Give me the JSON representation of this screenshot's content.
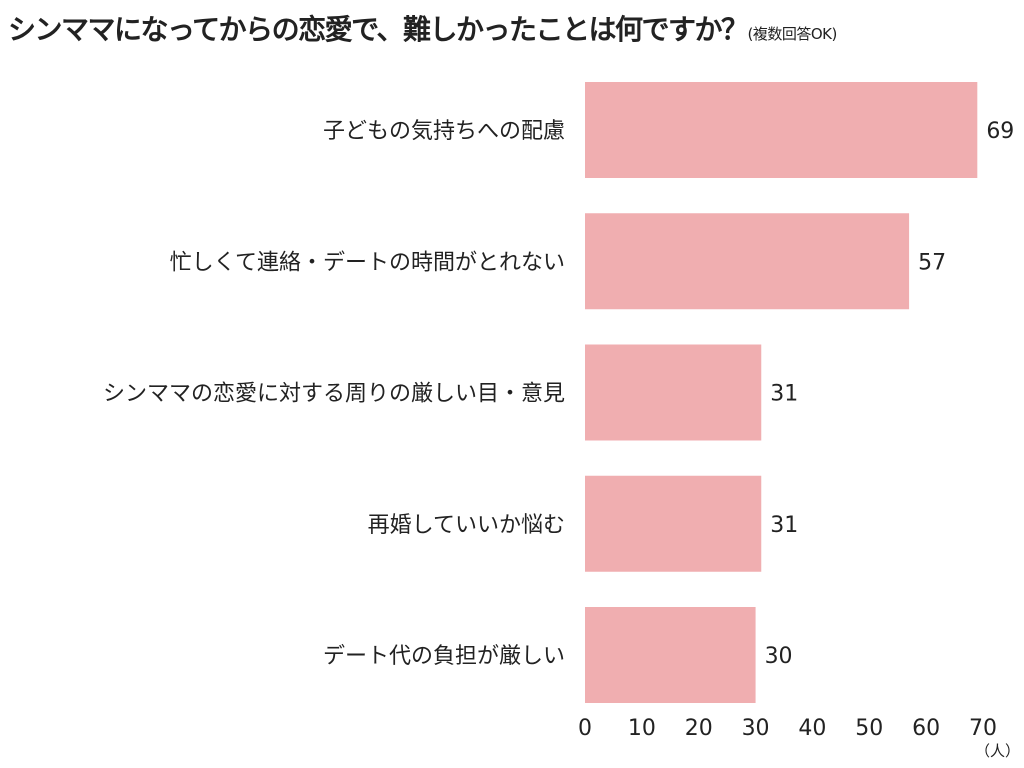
{
  "chart_data": {
    "type": "bar",
    "orientation": "horizontal",
    "title": "シンママになってからの恋愛で、難しかったことは何ですか？",
    "subtitle": "(複数回答OK)",
    "categories": [
      "子どもの気持ちへの配慮",
      "忙しくて連絡・デートの時間がとれない",
      "シンママの恋愛に対する周りの厳しい目・意見",
      "再婚していいか悩む",
      "デート代の負担が厳しい"
    ],
    "values": [
      69,
      57,
      31,
      31,
      30
    ],
    "xlabel": "（人）",
    "ylabel": "",
    "xlim": [
      0,
      70
    ],
    "xticks": [
      "0",
      "10",
      "20",
      "30",
      "40",
      "50",
      "60",
      "70"
    ],
    "grid": false,
    "bar_color": "#f0aeb0"
  }
}
